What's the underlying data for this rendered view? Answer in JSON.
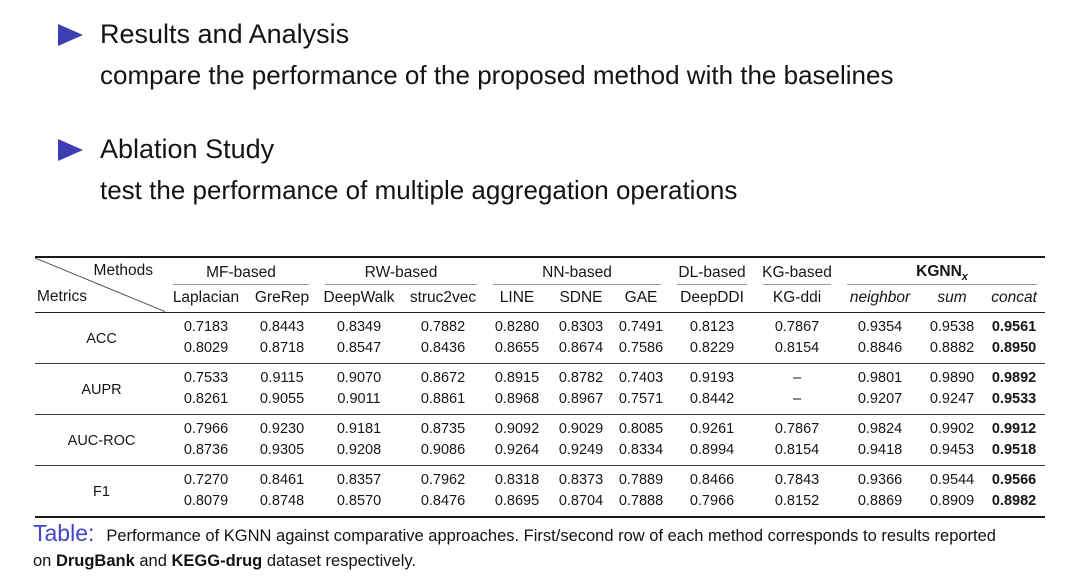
{
  "bullets": [
    {
      "title": "Results and Analysis",
      "subtitle": "compare the performance of the proposed method with the baselines"
    },
    {
      "title": "Ablation Study",
      "subtitle": "test the performance of multiple aggregation operations"
    }
  ],
  "colors": {
    "bullet_marker": "#3E3EB4",
    "caption_label": "#4343CB",
    "rule_dark": "#1a1a1a",
    "rule_light": "#9a9a9a"
  },
  "table": {
    "corner_top": "Methods",
    "corner_bottom": "Metrics",
    "groups": [
      {
        "label": "MF-based",
        "columns": [
          "Laplacian",
          "GreRep"
        ]
      },
      {
        "label": "RW-based",
        "columns": [
          "DeepWalk",
          "struc2vec"
        ]
      },
      {
        "label": "NN-based",
        "columns": [
          "LINE",
          "SDNE",
          "GAE"
        ]
      },
      {
        "label": "DL-based",
        "columns": [
          "DeepDDI"
        ]
      },
      {
        "label": "KG-based",
        "columns": [
          "KG-ddi"
        ]
      },
      {
        "label": "KGNN",
        "subscript": "x",
        "bold": true,
        "italic_columns": true,
        "columns": [
          "neighbor",
          "sum",
          "concat"
        ]
      }
    ],
    "metrics": [
      {
        "name": "ACC",
        "rows": [
          [
            "0.7183",
            "0.8443",
            "0.8349",
            "0.7882",
            "0.8280",
            "0.8303",
            "0.7491",
            "0.8123",
            "0.7867",
            "0.9354",
            "0.9538",
            "0.9561"
          ],
          [
            "0.8029",
            "0.8718",
            "0.8547",
            "0.8436",
            "0.8655",
            "0.8674",
            "0.7586",
            "0.8229",
            "0.8154",
            "0.8846",
            "0.8882",
            "0.8950"
          ]
        ]
      },
      {
        "name": "AUPR",
        "rows": [
          [
            "0.7533",
            "0.9115",
            "0.9070",
            "0.8672",
            "0.8915",
            "0.8782",
            "0.7403",
            "0.9193",
            "–",
            "0.9801",
            "0.9890",
            "0.9892"
          ],
          [
            "0.8261",
            "0.9055",
            "0.9011",
            "0.8861",
            "0.8968",
            "0.8967",
            "0.7571",
            "0.8442",
            "–",
            "0.9207",
            "0.9247",
            "0.9533"
          ]
        ]
      },
      {
        "name": "AUC-ROC",
        "rows": [
          [
            "0.7966",
            "0.9230",
            "0.9181",
            "0.8735",
            "0.9092",
            "0.9029",
            "0.8085",
            "0.9261",
            "0.7867",
            "0.9824",
            "0.9902",
            "0.9912"
          ],
          [
            "0.8736",
            "0.9305",
            "0.9208",
            "0.9086",
            "0.9264",
            "0.9249",
            "0.8334",
            "0.8994",
            "0.8154",
            "0.9418",
            "0.9453",
            "0.9518"
          ]
        ]
      },
      {
        "name": "F1",
        "rows": [
          [
            "0.7270",
            "0.8461",
            "0.8357",
            "0.7962",
            "0.8318",
            "0.8373",
            "0.7889",
            "0.8466",
            "0.7843",
            "0.9366",
            "0.9544",
            "0.9566"
          ],
          [
            "0.8079",
            "0.8748",
            "0.8570",
            "0.8476",
            "0.8695",
            "0.8704",
            "0.7888",
            "0.7966",
            "0.8152",
            "0.8869",
            "0.8909",
            "0.8982"
          ]
        ]
      }
    ],
    "bold_last_column": true
  },
  "caption": {
    "label": "Table:",
    "segments": [
      {
        "text": "Performance of KGNN against comparative approaches. First/second row of each method corresponds to results reported on ",
        "bold": false
      },
      {
        "text": "DrugBank",
        "bold": true
      },
      {
        "text": " and ",
        "bold": false
      },
      {
        "text": "KEGG-drug",
        "bold": true
      },
      {
        "text": " dataset respectively.",
        "bold": false
      }
    ]
  }
}
